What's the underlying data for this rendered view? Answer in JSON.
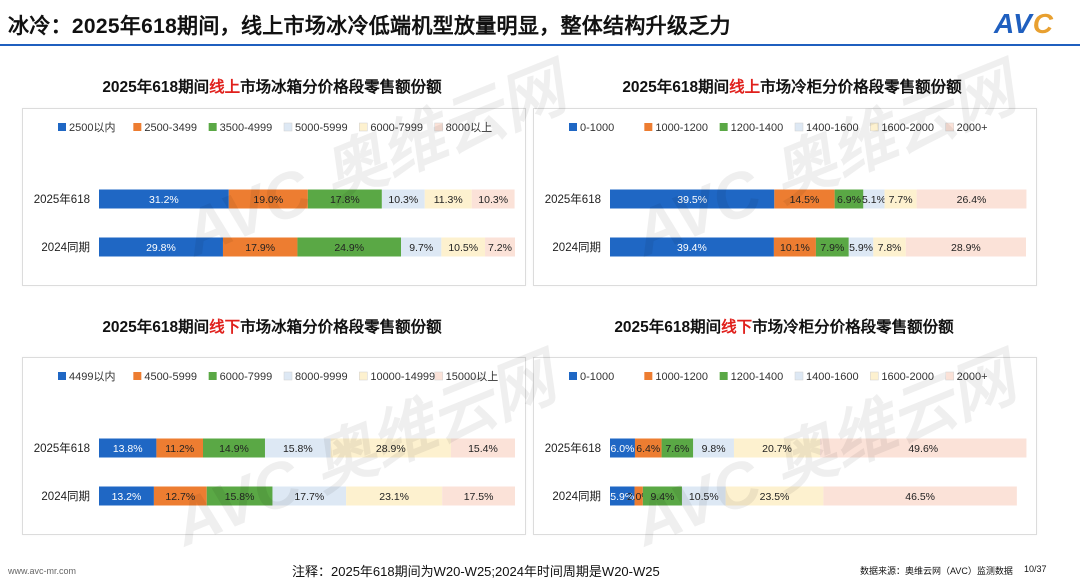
{
  "header": {
    "title": "冰冷：2025年618期间，线上市场冰冷低端机型放量明显，整体结构升级乏力",
    "logo_main": "AV",
    "logo_accent": "C"
  },
  "watermark": {
    "brand": "AVC 奥维云网",
    "sub": "ALL VIEW CLOUD"
  },
  "colors": {
    "blue": "#1f67c4",
    "orange": "#ed7d31",
    "green": "#5aa845",
    "light_blue": "#dde8f4",
    "cream": "#fdf1cf",
    "pink": "#fbe2d8",
    "accent_red": "#e0201c",
    "brand_blue": "#1f5fbf"
  },
  "panels": [
    {
      "title_pre": "2025年618期间",
      "title_hl": "线上",
      "title_post": "市场冰箱分价格段零售额份额"
    },
    {
      "title_pre": "2025年618期间",
      "title_hl": "线上",
      "title_post": "市场冷柜分价格段零售额份额"
    },
    {
      "title_pre": "2025年618期间",
      "title_hl": "线下",
      "title_post": "市场冰箱分价格段零售额份额"
    },
    {
      "title_pre": "2025年618期间",
      "title_hl": "线下",
      "title_post": "市场冷柜分价格段零售额份额"
    }
  ],
  "chart_data": [
    {
      "type": "bar",
      "orientation": "horizontal",
      "stacked": true,
      "percent": true,
      "title": "2025年618期间线上市场冰箱分价格段零售额份额",
      "categories": [
        "2025年618",
        "2024同期"
      ],
      "series": [
        {
          "name": "2500以内",
          "values": [
            31.2,
            29.8
          ],
          "color": "#1f67c4",
          "text_color": "#ffffff"
        },
        {
          "name": "2500-3499",
          "values": [
            19.0,
            17.9
          ],
          "color": "#ed7d31",
          "text_color": "#222222"
        },
        {
          "name": "3500-4999",
          "values": [
            17.8,
            24.9
          ],
          "color": "#5aa845",
          "text_color": "#222222"
        },
        {
          "name": "5000-5999",
          "values": [
            10.3,
            9.7
          ],
          "color": "#dde8f4",
          "text_color": "#222222"
        },
        {
          "name": "6000-7999",
          "values": [
            11.3,
            10.5
          ],
          "color": "#fdf1cf",
          "text_color": "#222222"
        },
        {
          "name": "8000以上",
          "values": [
            10.3,
            7.2
          ],
          "color": "#fbe2d8",
          "text_color": "#222222"
        }
      ],
      "legend_position": "top",
      "xlim": [
        0,
        100
      ]
    },
    {
      "type": "bar",
      "orientation": "horizontal",
      "stacked": true,
      "percent": true,
      "title": "2025年618期间线上市场冷柜分价格段零售额份额",
      "categories": [
        "2025年618",
        "2024同期"
      ],
      "series": [
        {
          "name": "0-1000",
          "values": [
            39.5,
            39.4
          ],
          "color": "#1f67c4",
          "text_color": "#ffffff"
        },
        {
          "name": "1000-1200",
          "values": [
            14.5,
            10.1
          ],
          "color": "#ed7d31",
          "text_color": "#222222"
        },
        {
          "name": "1200-1400",
          "values": [
            6.9,
            7.9
          ],
          "color": "#5aa845",
          "text_color": "#222222"
        },
        {
          "name": "1400-1600",
          "values": [
            5.1,
            5.9
          ],
          "color": "#dde8f4",
          "text_color": "#222222"
        },
        {
          "name": "1600-2000",
          "values": [
            7.7,
            7.8
          ],
          "color": "#fdf1cf",
          "text_color": "#222222"
        },
        {
          "name": "2000+",
          "values": [
            26.4,
            28.9
          ],
          "color": "#fbe2d8",
          "text_color": "#222222"
        }
      ],
      "legend_position": "top",
      "xlim": [
        0,
        100
      ]
    },
    {
      "type": "bar",
      "orientation": "horizontal",
      "stacked": true,
      "percent": true,
      "title": "2025年618期间线下市场冰箱分价格段零售额份额",
      "categories": [
        "2025年618",
        "2024同期"
      ],
      "series": [
        {
          "name": "4499以内",
          "values": [
            13.8,
            13.2
          ],
          "color": "#1f67c4",
          "text_color": "#ffffff"
        },
        {
          "name": "4500-5999",
          "values": [
            11.2,
            12.7
          ],
          "color": "#ed7d31",
          "text_color": "#222222"
        },
        {
          "name": "6000-7999",
          "values": [
            14.9,
            15.8
          ],
          "color": "#5aa845",
          "text_color": "#222222"
        },
        {
          "name": "8000-9999",
          "values": [
            15.8,
            17.7
          ],
          "color": "#dde8f4",
          "text_color": "#222222"
        },
        {
          "name": "10000-14999",
          "values": [
            28.9,
            23.1
          ],
          "color": "#fdf1cf",
          "text_color": "#222222"
        },
        {
          "name": "15000以上",
          "values": [
            15.4,
            17.5
          ],
          "color": "#fbe2d8",
          "text_color": "#222222"
        }
      ],
      "legend_position": "top",
      "xlim": [
        0,
        100
      ]
    },
    {
      "type": "bar",
      "orientation": "horizontal",
      "stacked": true,
      "percent": true,
      "title": "2025年618期间线下市场冷柜分价格段零售额份额",
      "categories": [
        "2025年618",
        "2024同期"
      ],
      "series": [
        {
          "name": "0-1000",
          "values": [
            6.0,
            5.9
          ],
          "color": "#1f67c4",
          "text_color": "#ffffff"
        },
        {
          "name": "1000-1200",
          "values": [
            6.4,
            2.0
          ],
          "color": "#ed7d31",
          "text_color": "#222222"
        },
        {
          "name": "1200-1400",
          "values": [
            7.6,
            9.4
          ],
          "color": "#5aa845",
          "text_color": "#222222"
        },
        {
          "name": "1400-1600",
          "values": [
            9.8,
            10.5
          ],
          "color": "#dde8f4",
          "text_color": "#222222"
        },
        {
          "name": "1600-2000",
          "values": [
            20.7,
            23.5
          ],
          "color": "#fdf1cf",
          "text_color": "#222222"
        },
        {
          "name": "2000+",
          "values": [
            49.6,
            46.5
          ],
          "color": "#fbe2d8",
          "text_color": "#222222"
        }
      ],
      "legend_position": "top",
      "xlim": [
        0,
        100
      ]
    }
  ],
  "footer": {
    "website": "www.avc-mr.com",
    "note": "注释：2025年618期间为W20-W25;2024年时间周期是W20-W25",
    "source": "数据来源：奥维云网（AVC）监测数据",
    "page": "10/37"
  }
}
